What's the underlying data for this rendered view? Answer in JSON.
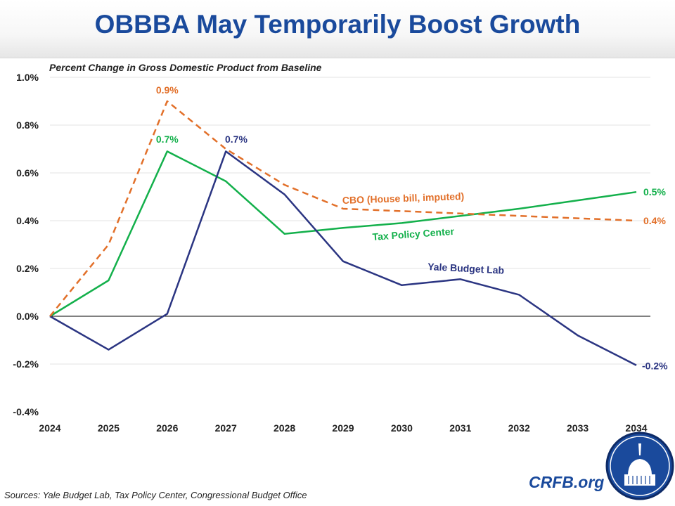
{
  "title": "OBBBA May Temporarily Boost Growth",
  "sources": "Sources: Yale Budget Lab, Tax Policy Center, Congressional Budget Office",
  "brand": "CRFB.org",
  "chart_data": {
    "type": "line",
    "title": "OBBBA May Temporarily Boost Growth",
    "ylabel": "Percent Change in Gross Domestic Product from Baseline",
    "x": [
      2024,
      2025,
      2026,
      2027,
      2028,
      2029,
      2030,
      2031,
      2032,
      2033,
      2034
    ],
    "ylim": [
      -0.4,
      1.0
    ],
    "yticks": [
      "-0.4%",
      "-0.2%",
      "0.0%",
      "0.2%",
      "0.4%",
      "0.6%",
      "0.8%",
      "1.0%"
    ],
    "ytick_values": [
      -0.4,
      -0.2,
      0,
      0.2,
      0.4,
      0.6,
      0.8,
      1.0
    ],
    "grid": true,
    "series": [
      {
        "name": "CBO (House bill, imputed)",
        "color": "#e2702a",
        "dash": true,
        "values": [
          0,
          0.3,
          0.9,
          0.7,
          0.55,
          0.45,
          0.44,
          0.43,
          0.42,
          0.41,
          0.4
        ],
        "labels": [
          {
            "index": 2,
            "text": "0.9%"
          },
          {
            "index": 10,
            "text": "0.4%"
          }
        ]
      },
      {
        "name": "Tax Policy Center",
        "color": "#13b04b",
        "dash": false,
        "values": [
          0,
          0.15,
          0.69,
          0.565,
          0.345,
          0.37,
          0.39,
          0.42,
          0.45,
          0.485,
          0.52
        ],
        "labels": [
          {
            "index": 2,
            "text": "0.7%"
          },
          {
            "index": 10,
            "text": "0.5%"
          }
        ]
      },
      {
        "name": "Yale Budget Lab",
        "color": "#2b3582",
        "dash": false,
        "values": [
          0,
          -0.14,
          0.01,
          0.69,
          0.51,
          0.23,
          0.13,
          0.155,
          0.09,
          -0.08,
          -0.205
        ],
        "labels": [
          {
            "index": 3,
            "text": "0.7%"
          },
          {
            "index": 10,
            "text": "-0.2%"
          }
        ]
      }
    ]
  }
}
